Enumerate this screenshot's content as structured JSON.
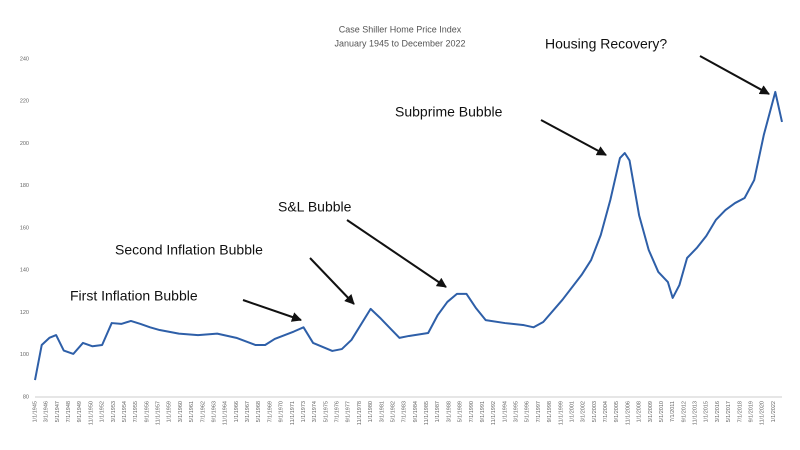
{
  "chart_data": {
    "type": "line",
    "title": "Case Shiller Home Price Index",
    "subtitle": "January 1945 to December 2022",
    "x": [
      1945.0,
      1945.7,
      1946.5,
      1947.2,
      1948,
      1949,
      1950,
      1951,
      1952,
      1953,
      1954,
      1955,
      1956,
      1957,
      1958,
      1960,
      1962,
      1964,
      1966,
      1968,
      1969,
      1970,
      1972,
      1973,
      1974,
      1976,
      1977,
      1978,
      1980,
      1981,
      1982,
      1983,
      1984,
      1986,
      1987,
      1988,
      1989,
      1990,
      1991,
      1992,
      1994,
      1996,
      1997,
      1998,
      2000,
      2002,
      2003,
      2004,
      2005,
      2006,
      2006.5,
      2007,
      2008,
      2009,
      2010,
      2011,
      2011.5,
      2012.2,
      2013,
      2014,
      2015,
      2016,
      2017,
      2018,
      2019,
      2020,
      2021,
      2022.2,
      2022.9
    ],
    "series": [
      {
        "name": "Case Shiller Home Price Index",
        "color": "#2e5fa8",
        "values": [
          88,
          104.6,
          108,
          109.3,
          102,
          100.4,
          105.6,
          104,
          104.6,
          115,
          114.6,
          116,
          114.6,
          113,
          111.7,
          110,
          109.3,
          110,
          108,
          104.6,
          104.6,
          107.5,
          111,
          113,
          105.6,
          101.8,
          102.7,
          107,
          121.7,
          117.4,
          112.7,
          108,
          108.9,
          110.3,
          118.8,
          125,
          128.8,
          128.8,
          122,
          116.4,
          115,
          114,
          113,
          115.5,
          126,
          137.8,
          144.9,
          156.7,
          173.3,
          193.1,
          195.5,
          192,
          166,
          149.6,
          139.2,
          134.4,
          126.9,
          133,
          145.8,
          150.5,
          156.2,
          163.8,
          168.5,
          171.8,
          174.2,
          182.7,
          204,
          224.4,
          210.2
        ]
      }
    ],
    "xlim": [
      1945,
      2022.9
    ],
    "xticks": [
      {
        "value": 1945.0,
        "label": "1/1/1945"
      },
      {
        "value": 1946.167,
        "label": "3/1/1946"
      },
      {
        "value": 1947.333,
        "label": "5/1/1947"
      },
      {
        "value": 1948.5,
        "label": "7/1/1948"
      },
      {
        "value": 1949.667,
        "label": "9/1/1949"
      },
      {
        "value": 1950.833,
        "label": "11/1/1950"
      },
      {
        "value": 1952.0,
        "label": "1/1/1952"
      },
      {
        "value": 1953.167,
        "label": "3/1/1953"
      },
      {
        "value": 1954.333,
        "label": "5/1/1954"
      },
      {
        "value": 1955.5,
        "label": "7/1/1955"
      },
      {
        "value": 1956.667,
        "label": "9/1/1956"
      },
      {
        "value": 1957.833,
        "label": "11/1/1957"
      },
      {
        "value": 1959.0,
        "label": "1/1/1959"
      },
      {
        "value": 1960.167,
        "label": "3/1/1960"
      },
      {
        "value": 1961.333,
        "label": "5/1/1961"
      },
      {
        "value": 1962.5,
        "label": "7/1/1962"
      },
      {
        "value": 1963.667,
        "label": "9/1/1963"
      },
      {
        "value": 1964.833,
        "label": "11/1/1964"
      },
      {
        "value": 1966.0,
        "label": "1/1/1966"
      },
      {
        "value": 1967.167,
        "label": "3/1/1967"
      },
      {
        "value": 1968.333,
        "label": "5/1/1968"
      },
      {
        "value": 1969.5,
        "label": "7/1/1969"
      },
      {
        "value": 1970.667,
        "label": "9/1/1970"
      },
      {
        "value": 1971.833,
        "label": "11/1/1971"
      },
      {
        "value": 1973.0,
        "label": "1/1/1973"
      },
      {
        "value": 1974.167,
        "label": "3/1/1974"
      },
      {
        "value": 1975.333,
        "label": "5/1/1975"
      },
      {
        "value": 1976.5,
        "label": "7/1/1976"
      },
      {
        "value": 1977.667,
        "label": "9/1/1977"
      },
      {
        "value": 1978.833,
        "label": "11/1/1978"
      },
      {
        "value": 1980.0,
        "label": "1/1/1980"
      },
      {
        "value": 1981.167,
        "label": "3/1/1981"
      },
      {
        "value": 1982.333,
        "label": "5/1/1982"
      },
      {
        "value": 1983.5,
        "label": "7/1/1983"
      },
      {
        "value": 1984.667,
        "label": "9/1/1984"
      },
      {
        "value": 1985.833,
        "label": "11/1/1985"
      },
      {
        "value": 1987.0,
        "label": "1/1/1987"
      },
      {
        "value": 1988.167,
        "label": "3/1/1988"
      },
      {
        "value": 1989.333,
        "label": "5/1/1989"
      },
      {
        "value": 1990.5,
        "label": "7/1/1990"
      },
      {
        "value": 1991.667,
        "label": "9/1/1991"
      },
      {
        "value": 1992.833,
        "label": "11/1/1992"
      },
      {
        "value": 1994.0,
        "label": "1/1/1994"
      },
      {
        "value": 1995.167,
        "label": "3/1/1995"
      },
      {
        "value": 1996.333,
        "label": "5/1/1996"
      },
      {
        "value": 1997.5,
        "label": "7/1/1997"
      },
      {
        "value": 1998.667,
        "label": "9/1/1998"
      },
      {
        "value": 1999.833,
        "label": "11/1/1999"
      },
      {
        "value": 2001.0,
        "label": "1/1/2001"
      },
      {
        "value": 2002.167,
        "label": "3/1/2002"
      },
      {
        "value": 2003.333,
        "label": "5/1/2003"
      },
      {
        "value": 2004.5,
        "label": "7/1/2004"
      },
      {
        "value": 2005.667,
        "label": "9/1/2005"
      },
      {
        "value": 2006.833,
        "label": "11/1/2006"
      },
      {
        "value": 2008.0,
        "label": "1/1/2008"
      },
      {
        "value": 2009.167,
        "label": "3/1/2009"
      },
      {
        "value": 2010.333,
        "label": "5/1/2010"
      },
      {
        "value": 2011.5,
        "label": "7/1/2011"
      },
      {
        "value": 2012.667,
        "label": "9/1/2012"
      },
      {
        "value": 2013.833,
        "label": "11/1/2013"
      },
      {
        "value": 2015.0,
        "label": "1/1/2015"
      },
      {
        "value": 2016.167,
        "label": "3/1/2016"
      },
      {
        "value": 2017.333,
        "label": "5/1/2017"
      },
      {
        "value": 2018.5,
        "label": "7/1/2018"
      },
      {
        "value": 2019.667,
        "label": "9/1/2019"
      },
      {
        "value": 2020.833,
        "label": "11/1/2020"
      },
      {
        "value": 2022.0,
        "label": "1/1/2022"
      }
    ],
    "ylim": [
      80,
      240
    ],
    "yticks": [
      80,
      100,
      120,
      140,
      160,
      180,
      200,
      220,
      240
    ],
    "grid": false,
    "annotations": [
      "First Inflation Bubble",
      "Second Inflation Bubble",
      "S&L Bubble",
      "Subprime Bubble",
      "Housing Recovery?"
    ]
  }
}
